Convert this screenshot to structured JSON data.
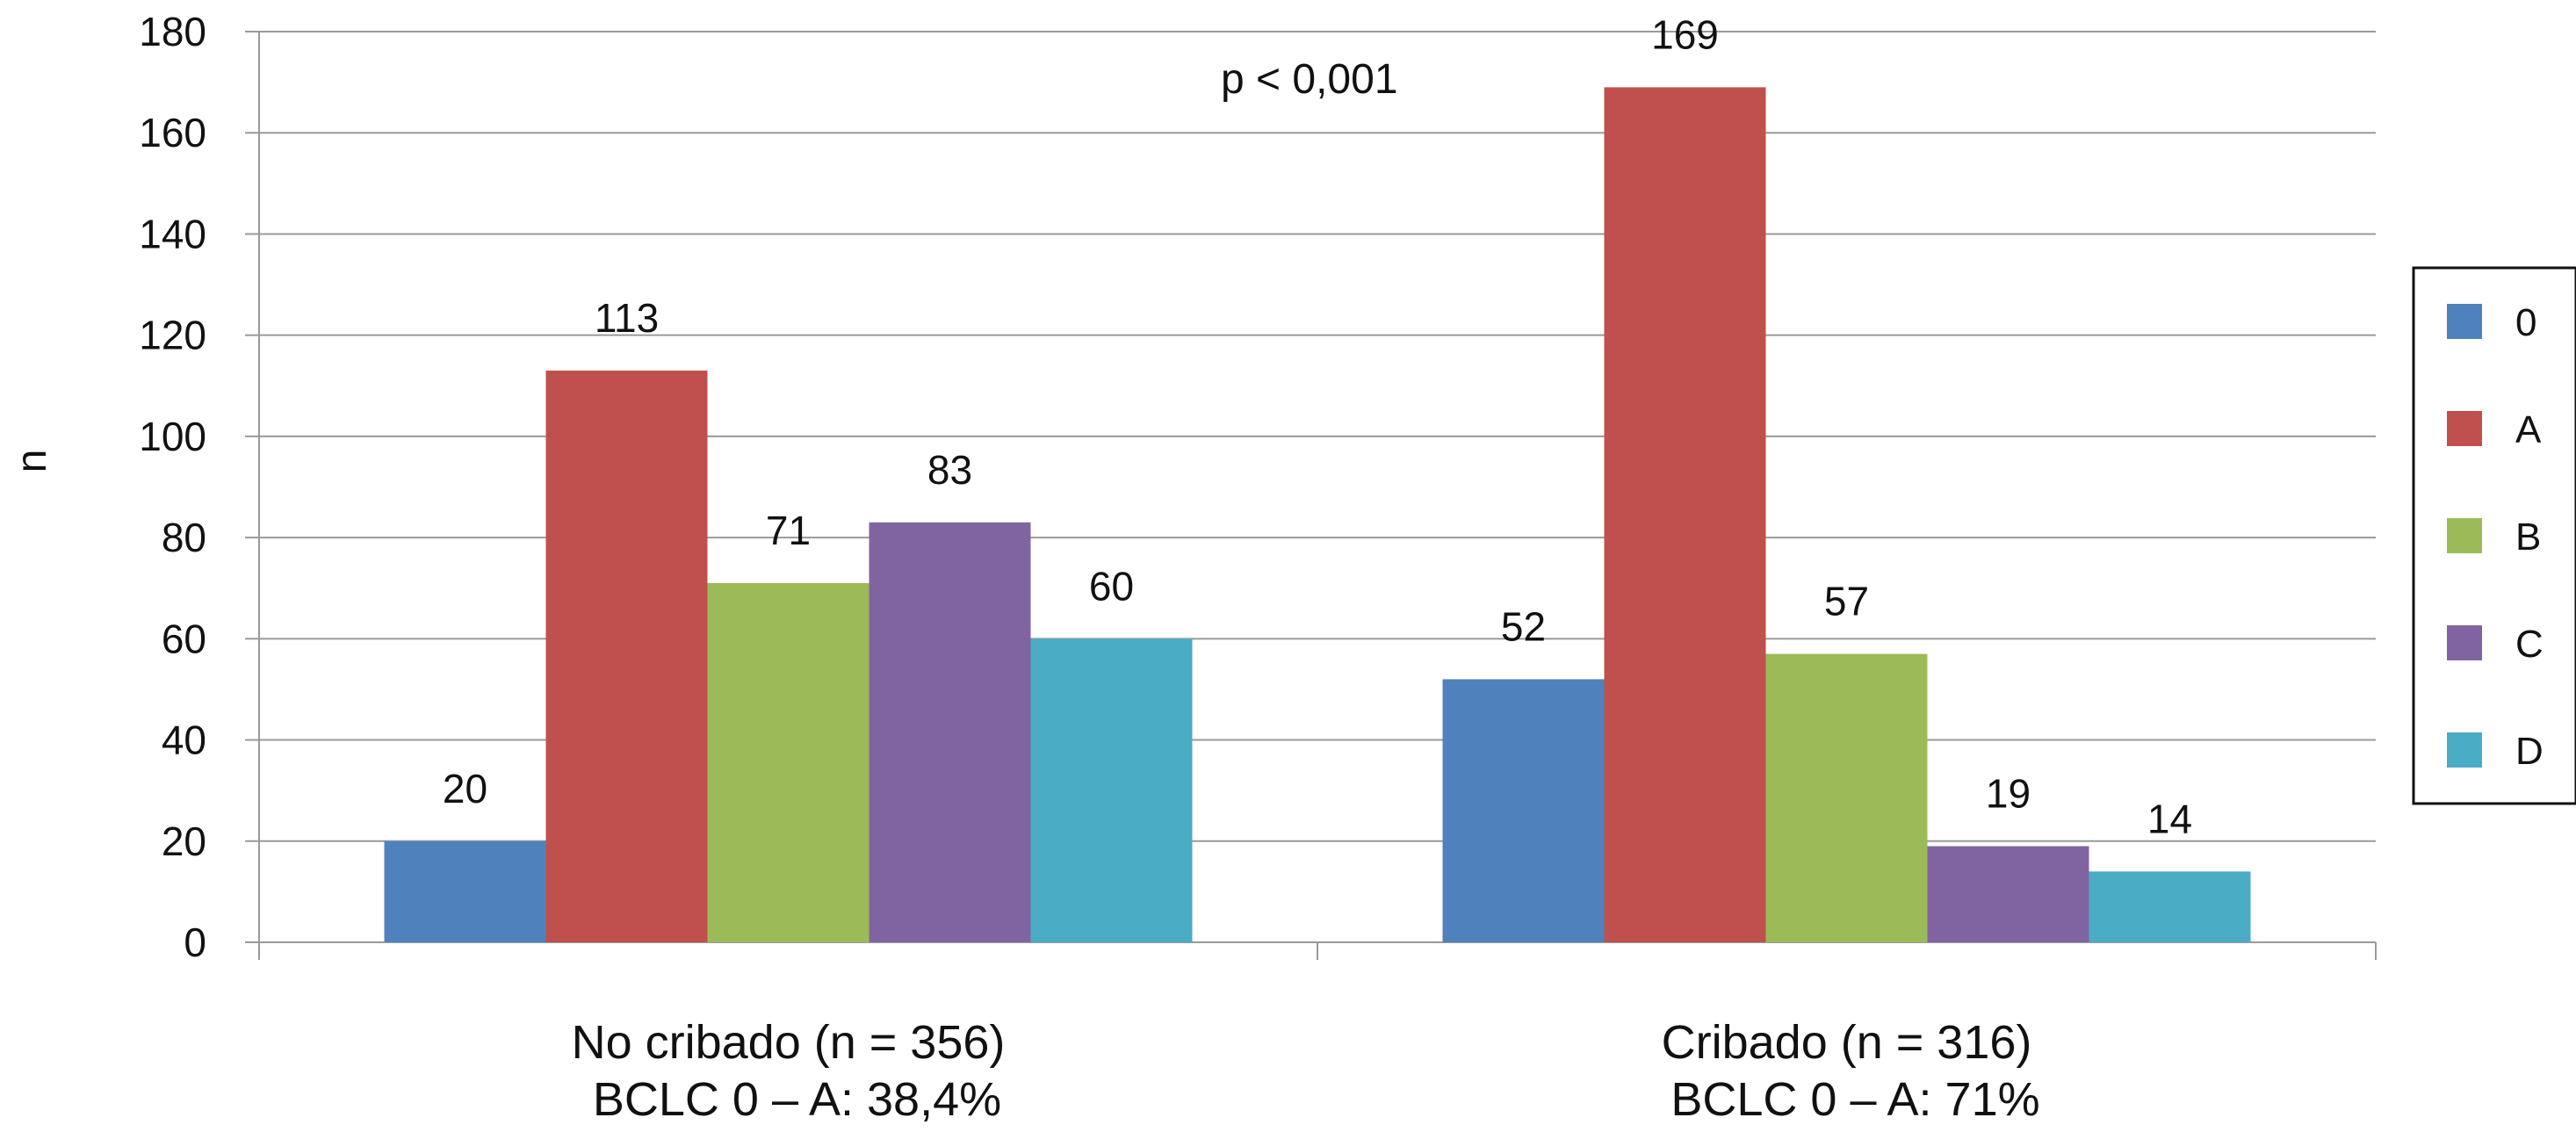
{
  "chart_data": {
    "type": "bar",
    "ylabel": "n",
    "ylim": [
      0,
      180
    ],
    "yticks": [
      0,
      20,
      40,
      60,
      80,
      100,
      120,
      140,
      160,
      180
    ],
    "grid": true,
    "legend_position": "right",
    "annotation": "p < 0,001",
    "categories": [
      {
        "line1": "No cribado (n = 356)",
        "line2": "BCLC 0 – A: 38,4%"
      },
      {
        "line1": "Cribado (n = 316)",
        "line2": "BCLC 0 – A: 71%"
      }
    ],
    "series": [
      {
        "name": "0",
        "color": "#4f81bd",
        "values": [
          20,
          52
        ]
      },
      {
        "name": "A",
        "color": "#c0504d",
        "values": [
          113,
          169
        ]
      },
      {
        "name": "B",
        "color": "#9bbb59",
        "values": [
          71,
          57
        ]
      },
      {
        "name": "C",
        "color": "#8064a2",
        "values": [
          83,
          19
        ]
      },
      {
        "name": "D",
        "color": "#4bacc6",
        "values": [
          60,
          14
        ]
      }
    ]
  }
}
